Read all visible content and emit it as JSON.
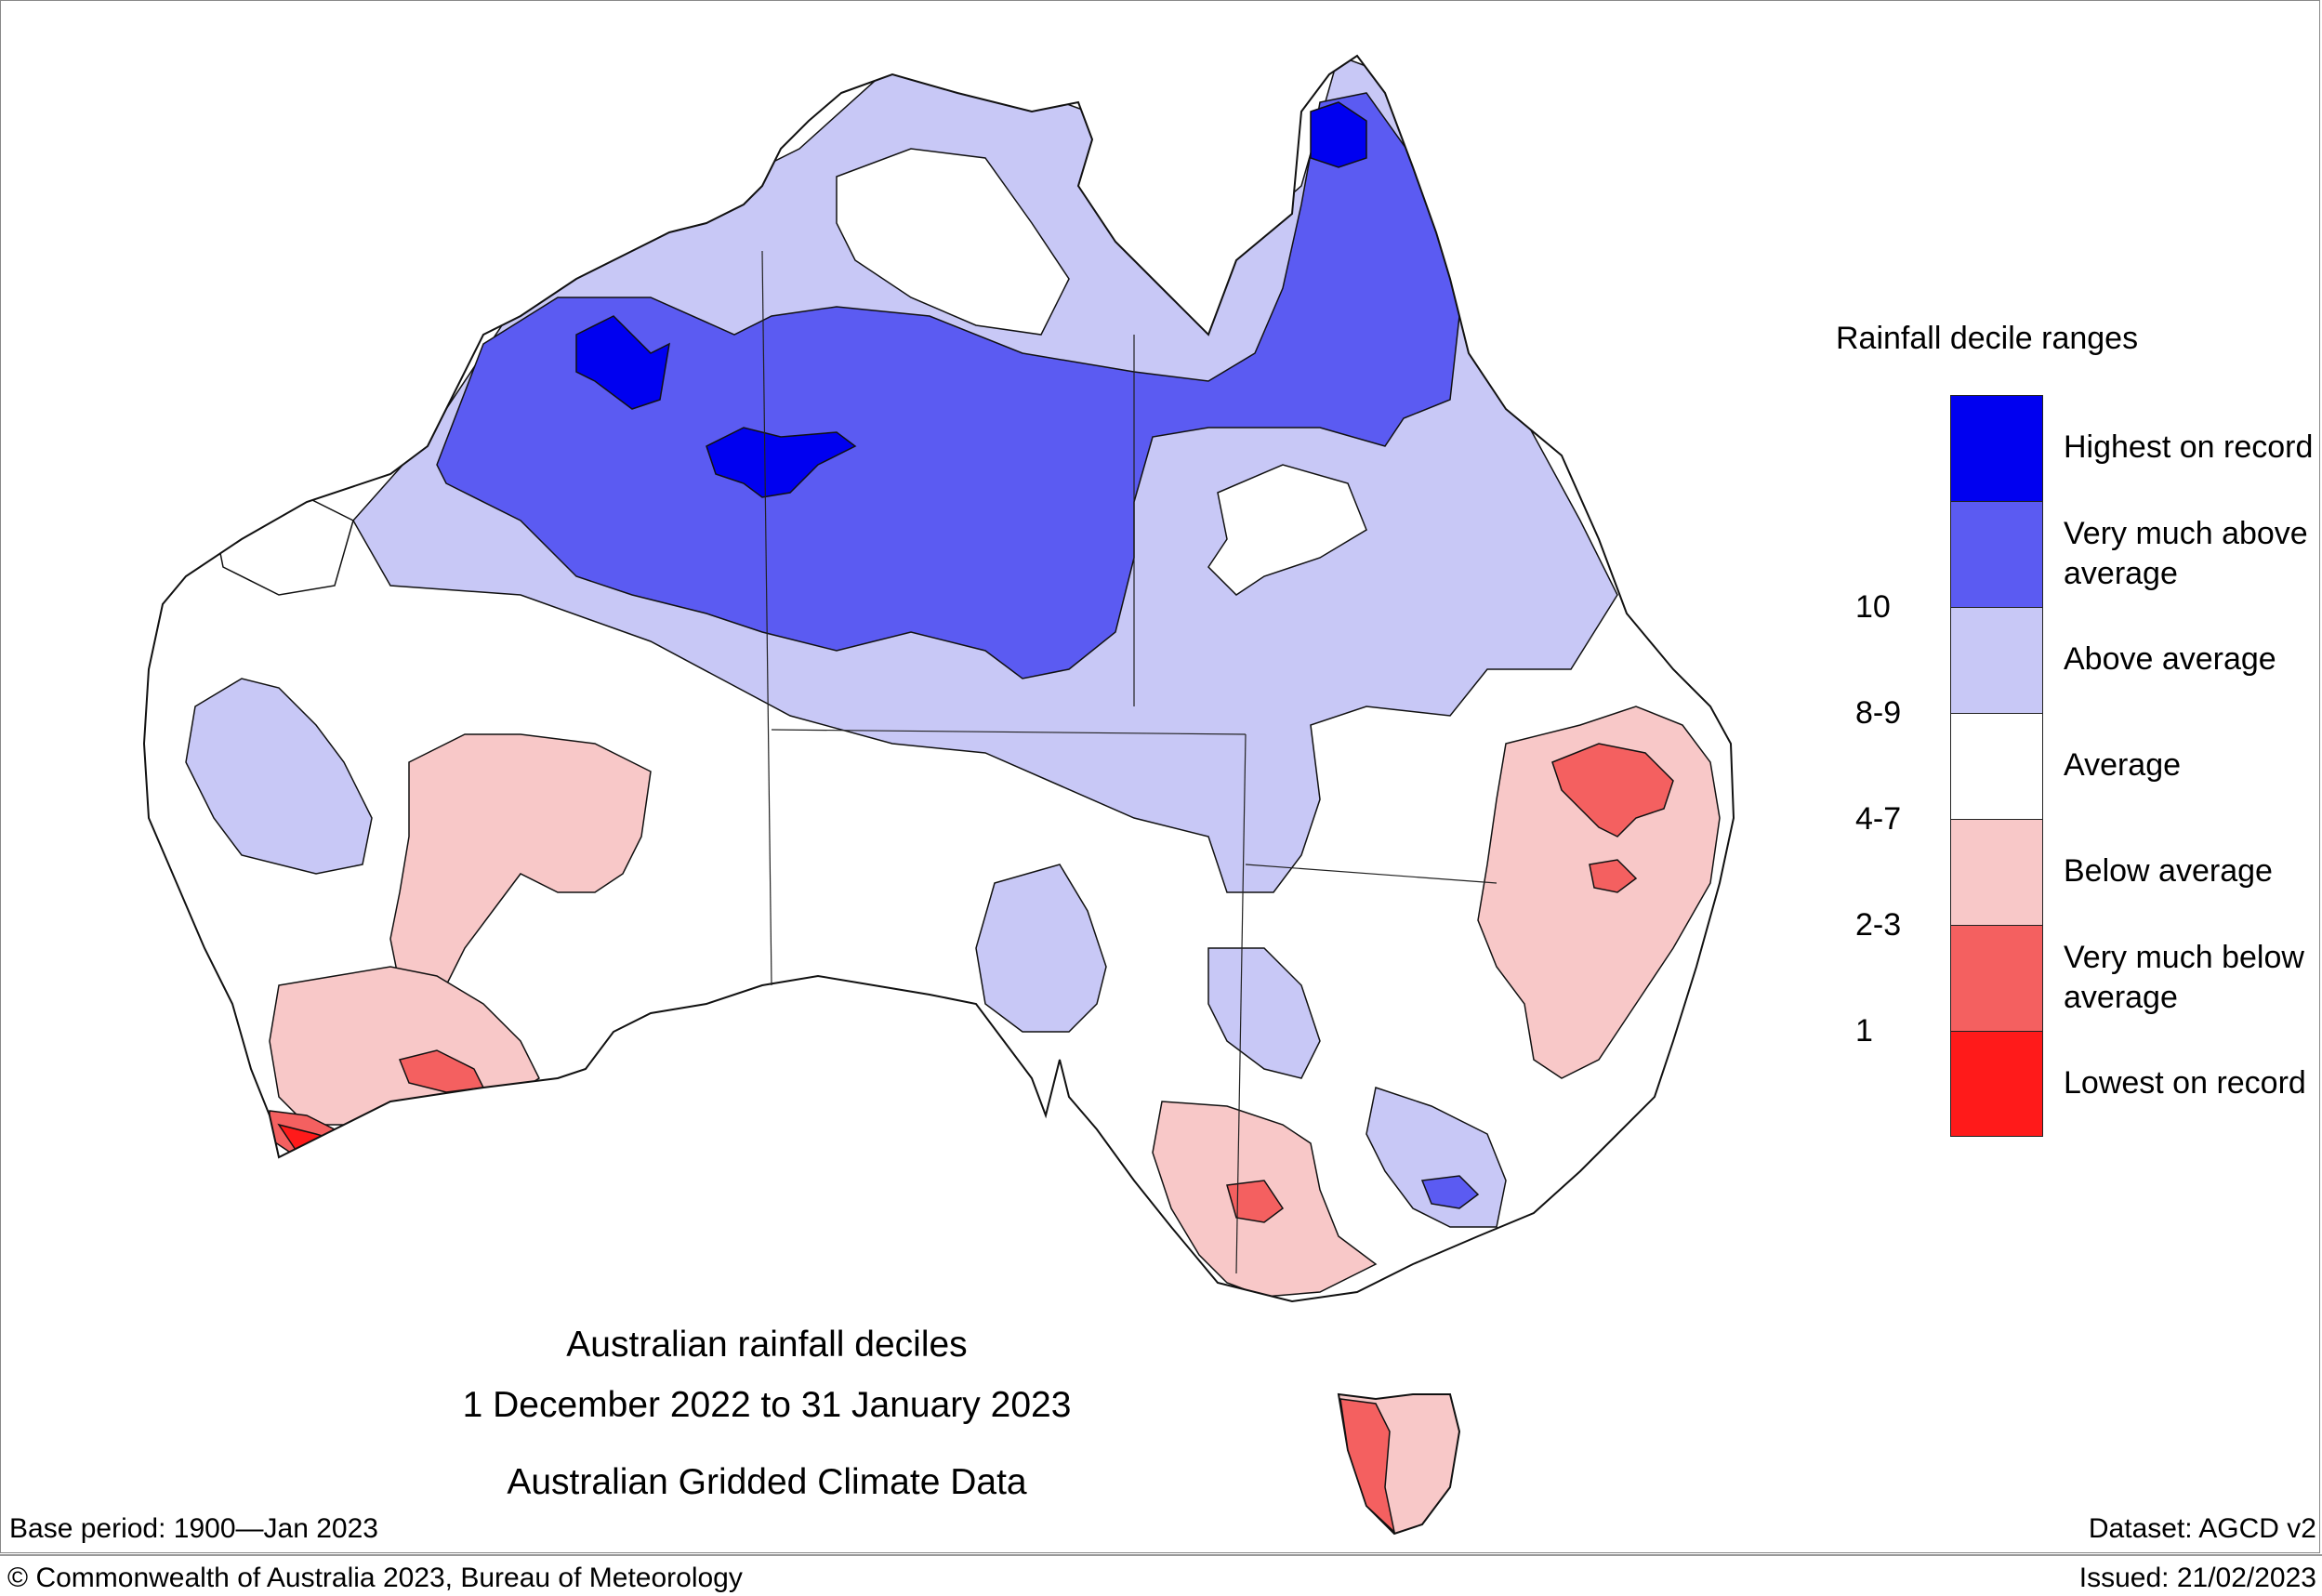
{
  "map": {
    "colors": {
      "highest": "#0000f0",
      "very_much_above": "#5b5bf2",
      "above": "#c8c8f6",
      "average": "#ffffff",
      "below": "#f8c8c8",
      "very_much_below": "#f46060",
      "lowest": "#ff1a1a",
      "outline": "#111111"
    }
  },
  "legend": {
    "title": "Rainfall decile ranges",
    "rows": [
      {
        "number": "",
        "label": "Highest on record",
        "color": "#0000f0"
      },
      {
        "number": "10",
        "label": "Very much above average",
        "color": "#5b5bf2"
      },
      {
        "number": "8-9",
        "label": "Above average",
        "color": "#c8c8f6"
      },
      {
        "number": "4-7",
        "label": "Average",
        "color": "#ffffff"
      },
      {
        "number": "2-3",
        "label": "Below average",
        "color": "#f8c8c8"
      },
      {
        "number": "1",
        "label": "Very much below average",
        "color": "#f46060"
      },
      {
        "number": "",
        "label": "Lowest on record",
        "color": "#ff1a1a"
      }
    ]
  },
  "caption": {
    "line1": "Australian rainfall deciles",
    "line2": "1 December 2022 to 31 January 2023",
    "line3": "Australian Gridded Climate Data"
  },
  "footer": {
    "base_period": "Base period: 1900—Jan 2023",
    "dataset": "Dataset: AGCD v2",
    "copyright": "© Commonwealth of Australia 2023, Bureau of Meteorology",
    "issued": "Issued: 21/02/2023"
  }
}
